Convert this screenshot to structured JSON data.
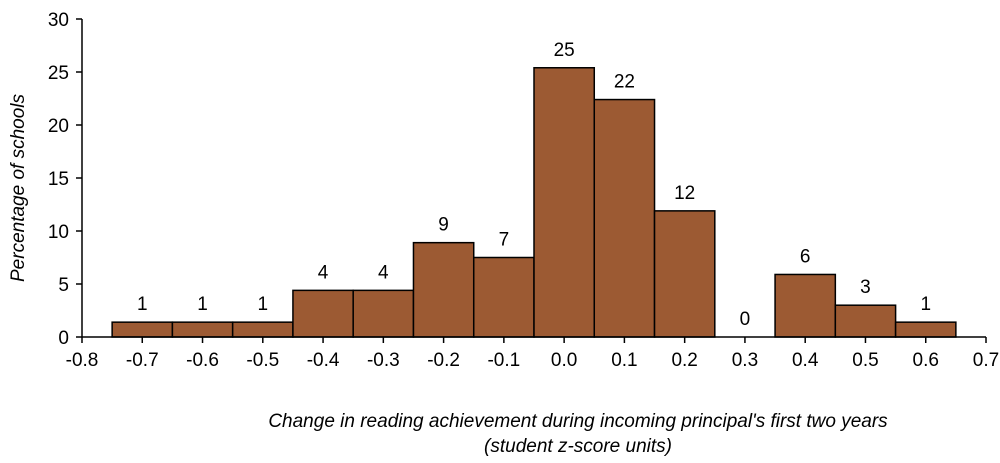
{
  "chart_data": {
    "type": "bar",
    "title": "",
    "xlabel": "Change in reading achievement during incoming principal's first two years",
    "xlabel_line2": "(student z-score units)",
    "ylabel": "Percentage of schools",
    "xlim": [
      -0.8,
      0.7
    ],
    "ylim": [
      0,
      30
    ],
    "grid": false,
    "legend": "none",
    "bar_color": "#9c5a33",
    "x_ticks": [
      "-0.8",
      "-0.7",
      "-0.6",
      "-0.5",
      "-0.4",
      "-0.3",
      "-0.2",
      "-0.1",
      "0.0",
      "0.1",
      "0.2",
      "0.3",
      "0.4",
      "0.5",
      "0.6",
      "0.7"
    ],
    "y_ticks": [
      "0",
      "5",
      "10",
      "15",
      "20",
      "25",
      "30"
    ],
    "bins": [
      {
        "center": -0.7,
        "value": 1.4,
        "label": "1"
      },
      {
        "center": -0.6,
        "value": 1.4,
        "label": "1"
      },
      {
        "center": -0.5,
        "value": 1.4,
        "label": "1"
      },
      {
        "center": -0.4,
        "value": 4.4,
        "label": "4"
      },
      {
        "center": -0.3,
        "value": 4.4,
        "label": "4"
      },
      {
        "center": -0.2,
        "value": 8.9,
        "label": "9"
      },
      {
        "center": -0.1,
        "value": 7.5,
        "label": "7"
      },
      {
        "center": 0.0,
        "value": 25.4,
        "label": "25"
      },
      {
        "center": 0.1,
        "value": 22.4,
        "label": "22"
      },
      {
        "center": 0.2,
        "value": 11.9,
        "label": "12"
      },
      {
        "center": 0.3,
        "value": 0,
        "label": "0"
      },
      {
        "center": 0.4,
        "value": 5.9,
        "label": "6"
      },
      {
        "center": 0.5,
        "value": 3.0,
        "label": "3"
      },
      {
        "center": 0.6,
        "value": 1.4,
        "label": "1"
      }
    ]
  }
}
